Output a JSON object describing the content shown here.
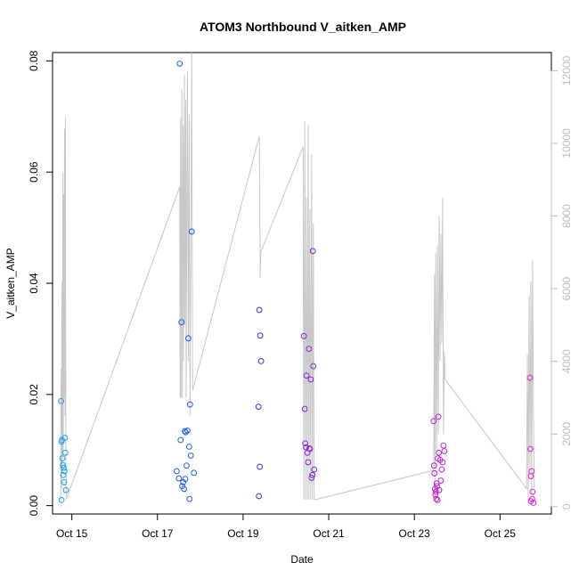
{
  "chart_data": {
    "type": "scatter",
    "title": "ATOM3 Northbound V_aitken_AMP",
    "xlabel": "Date",
    "ylabel": "V_aitken_AMP",
    "x_unit": "days (October)",
    "xlim": [
      14.55,
      26.2
    ],
    "ylim": [
      -0.0015,
      0.0815
    ],
    "x_ticks": [
      15,
      17,
      19,
      21,
      23,
      25
    ],
    "x_tick_labels": [
      "Oct 15",
      "Oct 17",
      "Oct 19",
      "Oct 21",
      "Oct 23",
      "Oct 25"
    ],
    "y_ticks": [
      0.0,
      0.02,
      0.04,
      0.06,
      0.08
    ],
    "y_tick_labels": [
      "0.00",
      "0.02",
      "0.04",
      "0.06",
      "0.08"
    ],
    "secondary_axis": {
      "position": "right",
      "ylim": [
        -200,
        12500
      ],
      "ticks": [
        0,
        2000,
        4000,
        6000,
        8000,
        10000,
        12000
      ],
      "tick_labels": [
        "0",
        "2000",
        "4000",
        "6000",
        "8000",
        "10000",
        "12000"
      ],
      "color": "#bdbdbd"
    },
    "grid": false,
    "legend": "none",
    "series": [
      {
        "color": "#1e9ef0",
        "points": [
          [
            14.75,
            0.0188
          ],
          [
            14.76,
            0.0115
          ],
          [
            14.77,
            0.0118
          ],
          [
            14.78,
            0.0085
          ],
          [
            14.79,
            0.0073
          ],
          [
            14.8,
            0.0055
          ],
          [
            14.81,
            0.0068
          ],
          [
            14.82,
            0.0042
          ],
          [
            14.83,
            0.0062
          ],
          [
            14.84,
            0.0122
          ],
          [
            14.85,
            0.0095
          ],
          [
            14.86,
            0.0028
          ],
          [
            14.76,
            0.001
          ]
        ]
      },
      {
        "color": "#1f5cf0",
        "points": [
          [
            17.52,
            0.0795
          ],
          [
            17.45,
            0.0062
          ],
          [
            17.5,
            0.0049
          ],
          [
            17.54,
            0.0118
          ],
          [
            17.56,
            0.033
          ],
          [
            17.58,
            0.0035
          ],
          [
            17.6,
            0.0042
          ],
          [
            17.62,
            0.003
          ],
          [
            17.64,
            0.0134
          ],
          [
            17.66,
            0.0132
          ],
          [
            17.68,
            0.0072
          ],
          [
            17.7,
            0.0135
          ],
          [
            17.72,
            0.0301
          ],
          [
            17.74,
            0.0106
          ],
          [
            17.76,
            0.0182
          ],
          [
            17.78,
            0.009
          ],
          [
            17.8,
            0.0493
          ],
          [
            17.85,
            0.0059
          ],
          [
            17.75,
            0.0012
          ],
          [
            17.65,
            0.0048
          ]
        ]
      },
      {
        "color": "#3a2fe0",
        "points": [
          [
            19.38,
            0.0352
          ],
          [
            19.4,
            0.0306
          ],
          [
            19.42,
            0.026
          ],
          [
            19.36,
            0.0178
          ],
          [
            19.39,
            0.007
          ],
          [
            19.37,
            0.0017
          ]
        ]
      },
      {
        "color": "#8a25e0",
        "points": [
          [
            20.42,
            0.0305
          ],
          [
            20.44,
            0.0174
          ],
          [
            20.45,
            0.0112
          ],
          [
            20.47,
            0.0105
          ],
          [
            20.48,
            0.0234
          ],
          [
            20.5,
            0.0095
          ],
          [
            20.52,
            0.0078
          ],
          [
            20.54,
            0.0282
          ],
          [
            20.56,
            0.0102
          ],
          [
            20.58,
            0.0227
          ],
          [
            20.6,
            0.005
          ],
          [
            20.62,
            0.0055
          ],
          [
            20.64,
            0.0251
          ],
          [
            20.66,
            0.0065
          ],
          [
            20.63,
            0.0458
          ],
          [
            20.55,
            0.0103
          ]
        ]
      },
      {
        "color": "#c21fd6",
        "points": [
          [
            23.45,
            0.0152
          ],
          [
            23.46,
            0.0072
          ],
          [
            23.47,
            0.0058
          ],
          [
            23.48,
            0.003
          ],
          [
            23.49,
            0.002
          ],
          [
            23.5,
            0.0025
          ],
          [
            23.51,
            0.0012
          ],
          [
            23.52,
            0.004
          ],
          [
            23.53,
            0.0035
          ],
          [
            23.55,
            0.0085
          ],
          [
            23.56,
            0.016
          ],
          [
            23.57,
            0.0095
          ],
          [
            23.58,
            0.0028
          ],
          [
            23.6,
            0.0082
          ],
          [
            23.62,
            0.0045
          ],
          [
            23.64,
            0.0065
          ],
          [
            23.66,
            0.0078
          ],
          [
            23.68,
            0.0108
          ],
          [
            23.7,
            0.0098
          ],
          [
            23.54,
            0.001
          ]
        ]
      },
      {
        "color": "#e81ecf",
        "points": [
          [
            25.7,
            0.023
          ],
          [
            25.71,
            0.0102
          ],
          [
            25.72,
            0.0053
          ],
          [
            25.74,
            0.0062
          ],
          [
            25.76,
            0.0025
          ],
          [
            25.72,
            0.0008
          ],
          [
            25.75,
            0.0012
          ],
          [
            25.78,
            0.0005
          ]
        ]
      }
    ],
    "secondary_trace": {
      "color": "#c8c8c8",
      "points": [
        [
          14.74,
          0
        ],
        [
          14.75,
          3800
        ],
        [
          14.76,
          500
        ],
        [
          14.77,
          6200
        ],
        [
          14.78,
          1000
        ],
        [
          14.79,
          9200
        ],
        [
          14.8,
          1500
        ],
        [
          14.81,
          8600
        ],
        [
          14.82,
          3000
        ],
        [
          14.83,
          10400
        ],
        [
          14.84,
          2500
        ],
        [
          14.85,
          10700
        ],
        [
          14.86,
          1800
        ],
        [
          14.87,
          200
        ],
        [
          17.52,
          8800
        ],
        [
          17.53,
          3000
        ],
        [
          17.54,
          10700
        ],
        [
          17.55,
          3000
        ],
        [
          17.57,
          11500
        ],
        [
          17.58,
          3000
        ],
        [
          17.6,
          10500
        ],
        [
          17.61,
          4000
        ],
        [
          17.63,
          11900
        ],
        [
          17.64,
          5000
        ],
        [
          17.66,
          11200
        ],
        [
          17.67,
          3000
        ],
        [
          17.7,
          12000
        ],
        [
          17.72,
          4000
        ],
        [
          17.74,
          10800
        ],
        [
          17.76,
          2500
        ],
        [
          17.8,
          12500
        ],
        [
          17.82,
          3200
        ],
        [
          19.38,
          10200
        ],
        [
          19.4,
          6300
        ],
        [
          19.41,
          7000
        ],
        [
          20.4,
          9900
        ],
        [
          20.42,
          200
        ],
        [
          20.44,
          10600
        ],
        [
          20.46,
          200
        ],
        [
          20.48,
          8500
        ],
        [
          20.5,
          200
        ],
        [
          20.52,
          10500
        ],
        [
          20.54,
          200
        ],
        [
          20.56,
          8200
        ],
        [
          20.58,
          200
        ],
        [
          20.6,
          9700
        ],
        [
          20.62,
          200
        ],
        [
          20.64,
          7800
        ],
        [
          20.66,
          200
        ],
        [
          20.7,
          200
        ],
        [
          23.45,
          1000
        ],
        [
          23.47,
          6400
        ],
        [
          23.48,
          200
        ],
        [
          23.5,
          7000
        ],
        [
          23.52,
          1500
        ],
        [
          23.54,
          7200
        ],
        [
          23.56,
          2000
        ],
        [
          23.58,
          8000
        ],
        [
          23.6,
          4000
        ],
        [
          23.62,
          7500
        ],
        [
          23.64,
          4500
        ],
        [
          23.66,
          8500
        ],
        [
          23.68,
          2000
        ],
        [
          23.7,
          4300
        ],
        [
          23.72,
          3500
        ],
        [
          25.62,
          500
        ],
        [
          25.64,
          4200
        ],
        [
          25.66,
          200
        ],
        [
          25.68,
          5800
        ],
        [
          25.7,
          1000
        ],
        [
          25.72,
          6200
        ],
        [
          25.74,
          300
        ],
        [
          25.76,
          6800
        ],
        [
          25.78,
          2800
        ],
        [
          25.8,
          500
        ]
      ]
    }
  }
}
